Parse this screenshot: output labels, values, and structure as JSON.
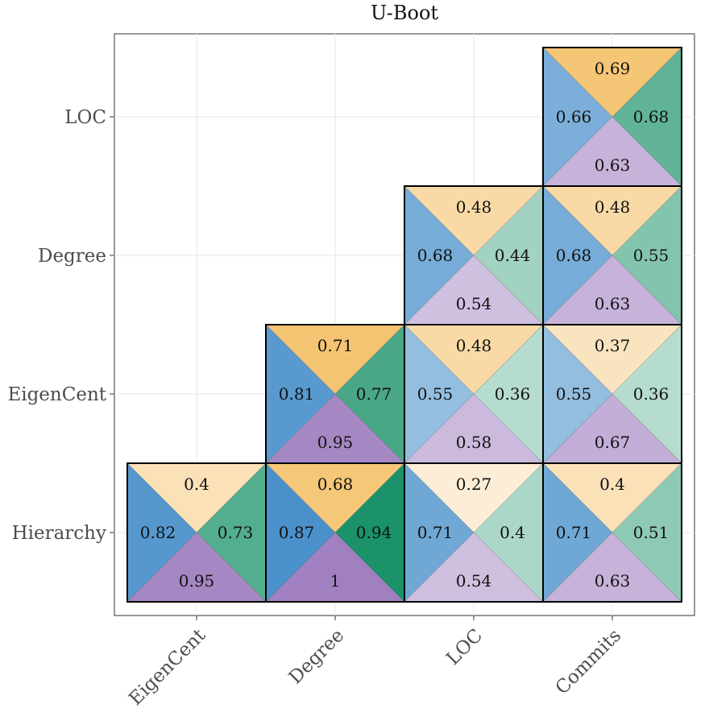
{
  "chart_data": {
    "type": "heatmap",
    "title": "U-Boot",
    "x_categories": [
      "EigenCent",
      "Degree",
      "LOC",
      "Commits"
    ],
    "y_categories": [
      "Hierarchy",
      "EigenCent",
      "Degree",
      "LOC"
    ],
    "triangle_order": [
      "top",
      "left",
      "right",
      "bottom"
    ],
    "cells": [
      {
        "x": "EigenCent",
        "y": "Hierarchy",
        "top": 0.4,
        "left": 0.82,
        "right": 0.73,
        "bottom": 0.95
      },
      {
        "x": "Degree",
        "y": "Hierarchy",
        "top": 0.68,
        "left": 0.87,
        "right": 0.94,
        "bottom": 1
      },
      {
        "x": "LOC",
        "y": "Hierarchy",
        "top": 0.27,
        "left": 0.71,
        "right": 0.4,
        "bottom": 0.54
      },
      {
        "x": "Commits",
        "y": "Hierarchy",
        "top": 0.4,
        "left": 0.71,
        "right": 0.51,
        "bottom": 0.63
      },
      {
        "x": "Degree",
        "y": "EigenCent",
        "top": 0.71,
        "left": 0.81,
        "right": 0.77,
        "bottom": 0.95
      },
      {
        "x": "LOC",
        "y": "EigenCent",
        "top": 0.48,
        "left": 0.55,
        "right": 0.36,
        "bottom": 0.58
      },
      {
        "x": "Commits",
        "y": "EigenCent",
        "top": 0.37,
        "left": 0.55,
        "right": 0.36,
        "bottom": 0.67
      },
      {
        "x": "LOC",
        "y": "Degree",
        "top": 0.48,
        "left": 0.68,
        "right": 0.44,
        "bottom": 0.54
      },
      {
        "x": "Commits",
        "y": "Degree",
        "top": 0.48,
        "left": 0.68,
        "right": 0.55,
        "bottom": 0.63
      },
      {
        "x": "Commits",
        "y": "LOC",
        "top": 0.69,
        "left": 0.66,
        "right": 0.68,
        "bottom": 0.63
      }
    ],
    "value_range": [
      0.27,
      1
    ],
    "colors": {
      "top": "#f0a830",
      "left": "#2c7fc2",
      "right": "#0b8a60",
      "bottom": "#a080c0"
    },
    "grid": true,
    "legend": "none"
  }
}
